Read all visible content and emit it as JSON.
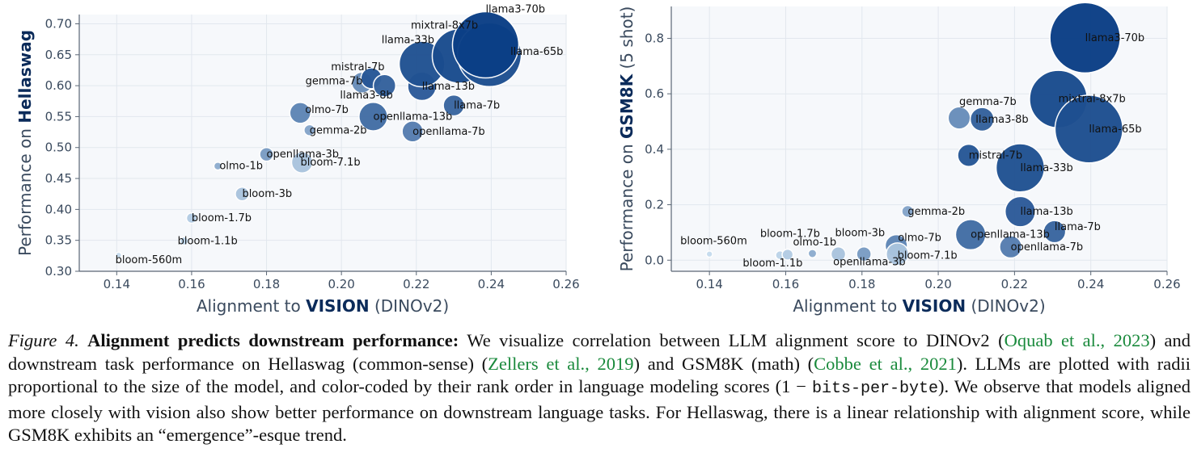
{
  "colors": {
    "plot_bg": "#f6f8fb",
    "axis": "#3a4a5e",
    "dark": "#0b3f86",
    "light": "#c6dcee"
  },
  "chart_data": [
    {
      "type": "scatter",
      "ylabel_prefix": "Performance on",
      "ylabel_metric": "Hellaswag",
      "xlabel_prefix": "Alignment to",
      "xlabel_strong": "VISION",
      "xlabel_suffix": "(DINOv2)",
      "xlim": [
        0.13,
        0.26
      ],
      "ylim": [
        0.3,
        0.715
      ],
      "xticks": [
        0.14,
        0.16,
        0.18,
        0.2,
        0.22,
        0.24,
        0.26
      ],
      "xtick_labels": [
        "0.14",
        "0.16",
        "0.18",
        "0.20",
        "0.22",
        "0.24",
        "0.26"
      ],
      "yticks": [
        0.3,
        0.35,
        0.4,
        0.45,
        0.5,
        0.55,
        0.6,
        0.65,
        0.7
      ],
      "ytick_labels": [
        "0.30",
        "0.35",
        "0.40",
        "0.45",
        "0.50",
        "0.55",
        "0.60",
        "0.65",
        "0.70"
      ],
      "points": [
        {
          "label": "bloom-560m",
          "x": 0.1405,
          "y": 0.326,
          "size": 0.56,
          "rank": 0.0
        },
        {
          "label": "bloom-1.1b",
          "x": 0.158,
          "y": 0.349,
          "size": 1.1,
          "rank": 0.05
        },
        {
          "label": "bloom-1.7b",
          "x": 0.16,
          "y": 0.386,
          "size": 1.7,
          "rank": 0.1
        },
        {
          "label": "bloom-3b",
          "x": 0.1735,
          "y": 0.425,
          "size": 3,
          "rank": 0.15
        },
        {
          "label": "olmo-1b",
          "x": 0.167,
          "y": 0.47,
          "size": 1,
          "rank": 0.3
        },
        {
          "label": "bloom-7.1b",
          "x": 0.1895,
          "y": 0.476,
          "size": 7.1,
          "rank": 0.15
        },
        {
          "label": "openllama-3b",
          "x": 0.18,
          "y": 0.489,
          "size": 3,
          "rank": 0.4
        },
        {
          "label": "gemma-2b",
          "x": 0.1915,
          "y": 0.528,
          "size": 2,
          "rank": 0.35
        },
        {
          "label": "olmo-7b",
          "x": 0.189,
          "y": 0.556,
          "size": 7,
          "rank": 0.55
        },
        {
          "label": "openllama-7b",
          "x": 0.219,
          "y": 0.526,
          "size": 7,
          "rank": 0.6
        },
        {
          "label": "openllama-13b",
          "x": 0.2085,
          "y": 0.55,
          "size": 13,
          "rank": 0.7
        },
        {
          "label": "llama-7b",
          "x": 0.23,
          "y": 0.568,
          "size": 7,
          "rank": 0.75
        },
        {
          "label": "gemma-7b",
          "x": 0.2055,
          "y": 0.605,
          "size": 7,
          "rank": 0.5
        },
        {
          "label": "mistral-7b",
          "x": 0.208,
          "y": 0.612,
          "size": 7,
          "rank": 0.85
        },
        {
          "label": "llama3-8b",
          "x": 0.2115,
          "y": 0.6,
          "size": 8,
          "rank": 0.78
        },
        {
          "label": "llama-13b",
          "x": 0.2215,
          "y": 0.599,
          "size": 13,
          "rank": 0.82
        },
        {
          "label": "llama-33b",
          "x": 0.2215,
          "y": 0.635,
          "size": 33,
          "rank": 0.88
        },
        {
          "label": "mixtral-8x7b",
          "x": 0.2315,
          "y": 0.648,
          "size": 47,
          "rank": 0.92
        },
        {
          "label": "llama-65b",
          "x": 0.2395,
          "y": 0.65,
          "size": 65,
          "rank": 0.9
        },
        {
          "label": "llama3-70b",
          "x": 0.2385,
          "y": 0.666,
          "size": 70,
          "rank": 1.0
        }
      ],
      "label_lines": [
        "mistral-7b",
        "gemma-7b",
        "llama3-8b",
        "olmo-7b",
        "gemma-2b",
        "openllama-3b",
        "olmo-1b",
        "bloom-7.1b",
        "bloom-3b",
        "bloom-1.7b",
        "bloom-1.1b",
        "bloom-560m",
        "openllama-13b",
        "openllama-7b",
        "llama-7b",
        "llama-13b",
        "llama-33b",
        "mixtral-8x7b",
        "llama3-70b",
        "llama-65b"
      ]
    },
    {
      "type": "scatter",
      "ylabel_prefix": "Performance on",
      "ylabel_metric": "GSM8K",
      "ylabel_suffix": "(5 shot)",
      "xlabel_prefix": "Alignment to",
      "xlabel_strong": "VISION",
      "xlabel_suffix": "(DINOv2)",
      "xlim": [
        0.13,
        0.26
      ],
      "ylim": [
        -0.04,
        0.915
      ],
      "xticks": [
        0.14,
        0.16,
        0.18,
        0.2,
        0.22,
        0.24,
        0.26
      ],
      "xtick_labels": [
        "0.14",
        "0.16",
        "0.18",
        "0.20",
        "0.22",
        "0.24",
        "0.26"
      ],
      "yticks": [
        0.0,
        0.2,
        0.4,
        0.6,
        0.8
      ],
      "ytick_labels": [
        "0.0",
        "0.2",
        "0.4",
        "0.6",
        "0.8"
      ],
      "points": [
        {
          "label": "bloom-560m",
          "x": 0.14,
          "y": 0.022,
          "size": 0.56,
          "rank": 0.0
        },
        {
          "label": "bloom-1.1b",
          "x": 0.1585,
          "y": 0.018,
          "size": 1.1,
          "rank": 0.05
        },
        {
          "label": "bloom-1.7b",
          "x": 0.1605,
          "y": 0.02,
          "size": 1.7,
          "rank": 0.1
        },
        {
          "label": "olmo-1b",
          "x": 0.167,
          "y": 0.024,
          "size": 1,
          "rank": 0.3
        },
        {
          "label": "bloom-3b",
          "x": 0.1738,
          "y": 0.022,
          "size": 3,
          "rank": 0.15
        },
        {
          "label": "openllama-3b",
          "x": 0.1805,
          "y": 0.022,
          "size": 3,
          "rank": 0.4
        },
        {
          "label": "bloom-7.1b",
          "x": 0.1893,
          "y": 0.022,
          "size": 7.1,
          "rank": 0.15
        },
        {
          "label": "olmo-7b",
          "x": 0.189,
          "y": 0.052,
          "size": 7,
          "rank": 0.55
        },
        {
          "label": "gemma-2b",
          "x": 0.192,
          "y": 0.176,
          "size": 2,
          "rank": 0.35
        },
        {
          "label": "openllama-13b",
          "x": 0.2085,
          "y": 0.092,
          "size": 13,
          "rank": 0.7
        },
        {
          "label": "openllama-7b",
          "x": 0.219,
          "y": 0.048,
          "size": 7,
          "rank": 0.6
        },
        {
          "label": "llama-7b",
          "x": 0.2305,
          "y": 0.103,
          "size": 7,
          "rank": 0.75
        },
        {
          "label": "llama-13b",
          "x": 0.2215,
          "y": 0.175,
          "size": 13,
          "rank": 0.82
        },
        {
          "label": "mistral-7b",
          "x": 0.208,
          "y": 0.378,
          "size": 7,
          "rank": 0.85
        },
        {
          "label": "llama-33b",
          "x": 0.2215,
          "y": 0.333,
          "size": 33,
          "rank": 0.88
        },
        {
          "label": "gemma-7b",
          "x": 0.2055,
          "y": 0.513,
          "size": 7,
          "rank": 0.5
        },
        {
          "label": "llama3-8b",
          "x": 0.2115,
          "y": 0.508,
          "size": 8,
          "rank": 0.78
        },
        {
          "label": "mixtral-8x7b",
          "x": 0.2315,
          "y": 0.581,
          "size": 47,
          "rank": 0.92
        },
        {
          "label": "llama-65b",
          "x": 0.2395,
          "y": 0.473,
          "size": 65,
          "rank": 0.9
        },
        {
          "label": "llama3-70b",
          "x": 0.2385,
          "y": 0.802,
          "size": 70,
          "rank": 1.0
        }
      ],
      "label_lines": [
        "llama3-70b",
        "mixtral-8x7b",
        "gemma-7b",
        "llama3-8b",
        "llama-65b",
        "mistral-7b",
        "llama-33b",
        "gemma-2b",
        "llama-13b",
        "llama-7b",
        "bloom-1.7b",
        "bloom-3b",
        "olmo-1b",
        "olmo-7b",
        "openllama-13b",
        "openllama-7b",
        "bloom-560m",
        "bloom-7.1b",
        "bloom-1.1b",
        "openllama-3b"
      ]
    }
  ],
  "caption": {
    "figure_label": "Figure 4.",
    "lead": "Alignment predicts downstream performance:",
    "t1": " We visualize correlation between LLM alignment score to DINOv2 (",
    "c1": "Oquab et al.,",
    "t1b": " ",
    "c1y": "2023",
    "t2": ") and downstream task performance on Hellaswag (common-sense) (",
    "c2": "Zellers et al.,",
    "t2b": " ",
    "c2y": "2019",
    "t3": ") and GSM8K (math) (",
    "c3": "Cobbe et al.,",
    "t3b": " ",
    "c3y": "2021",
    "t4": "). LLMs are plotted with radii proportional to the size of the model, and color-coded by their rank order in language modeling scores (1 − ",
    "mono": "bits-per-byte",
    "t5": "). We observe that models aligned more closely with vision also show better performance on downstream language tasks. For Hellaswag, there is a linear relationship with alignment score, while GSM8K exhibits an “emergence”-esque trend."
  }
}
